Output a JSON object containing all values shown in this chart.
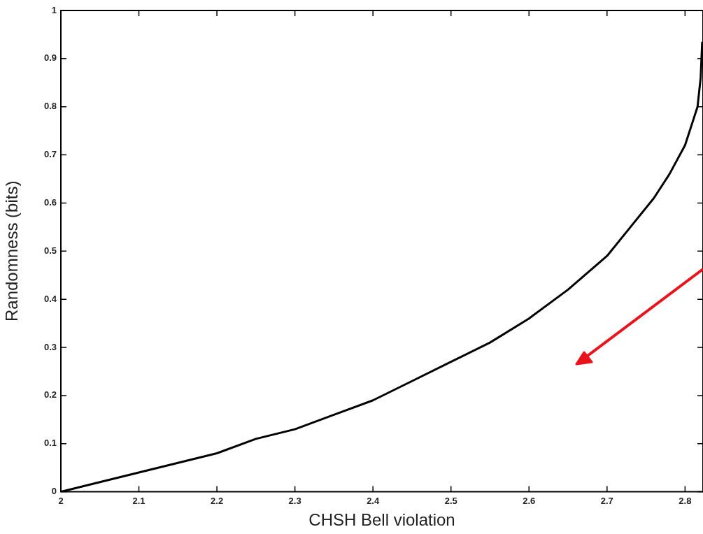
{
  "chart_data": {
    "type": "line",
    "xlabel": "CHSH Bell violation",
    "ylabel": "Randomness (bits)",
    "x": [
      2,
      2.05,
      2.1,
      2.15,
      2.2,
      2.25,
      2.3,
      2.35,
      2.4,
      2.45,
      2.5,
      2.55,
      2.6,
      2.65,
      2.7,
      2.73,
      2.76,
      2.78,
      2.8,
      2.81,
      2.816,
      2.82,
      2.822
    ],
    "series": [
      {
        "color": "#000000",
        "values": [
          0,
          0.02,
          0.04,
          0.06,
          0.08,
          0.11,
          0.13,
          0.16,
          0.19,
          0.23,
          0.27,
          0.31,
          0.36,
          0.42,
          0.49,
          0.55,
          0.61,
          0.66,
          0.72,
          0.77,
          0.8,
          0.86,
          0.935
        ]
      }
    ],
    "xlim": [
      2,
      2.823
    ],
    "xticks": [
      2,
      2.1,
      2.2,
      2.3,
      2.4,
      2.5,
      2.6,
      2.7,
      2.8
    ],
    "ylim": [
      0,
      1
    ],
    "yticks": [
      0,
      0.1,
      0.2,
      0.3,
      0.4,
      0.5,
      0.6,
      0.7,
      0.8,
      0.9,
      1
    ],
    "marker": "none",
    "line_style": "solid",
    "legend": false
  }
}
